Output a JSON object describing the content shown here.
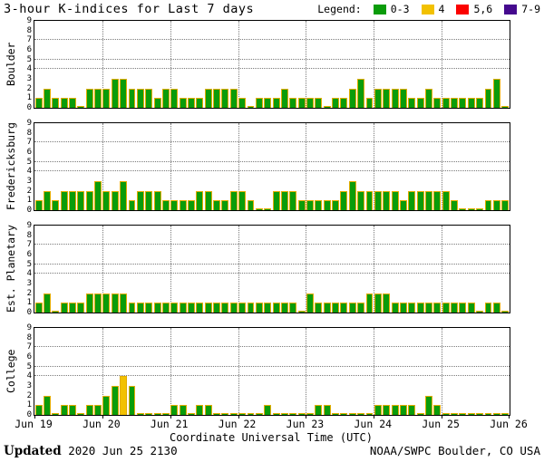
{
  "header": {
    "title": "3-hour K-indices for Last 7 days",
    "legend_label": "Legend:",
    "legend": [
      {
        "label": "0-3",
        "color": "#0a9c0a"
      },
      {
        "label": "4",
        "color": "#f2c101"
      },
      {
        "label": "5,6",
        "color": "#fb0200"
      },
      {
        "label": "7-9",
        "color": "#45098e"
      }
    ]
  },
  "chart_data": {
    "type": "bar",
    "title": "3-hour K-indices for Last 7 days",
    "xlabel": "Coordinate Universal Time (UTC)",
    "x_tick_labels": [
      "Jun 19",
      "Jun 20",
      "Jun 21",
      "Jun 22",
      "Jun 23",
      "Jun 24",
      "Jun 25",
      "Jun 26"
    ],
    "ylim": [
      0,
      9
    ],
    "y_tick_labels": [
      0,
      1,
      2,
      3,
      4,
      5,
      6,
      7,
      8,
      9
    ],
    "y_grid_values": [
      4,
      5,
      7
    ],
    "grid": "dotted",
    "bars_per_day": 8,
    "days": 7,
    "bar_colors": {
      "green_0_3": "#0a9c0a",
      "yellow_4": "#f2c101",
      "red_5_6": "#fb0200",
      "purple_7_9": "#45098e",
      "bar_edge": "#e2ac00"
    },
    "panels": [
      {
        "station": "Boulder",
        "values": [
          1,
          2,
          1,
          1,
          1,
          0,
          2,
          2,
          2,
          3,
          3,
          2,
          2,
          2,
          1,
          2,
          2,
          1,
          1,
          1,
          2,
          2,
          2,
          2,
          1,
          0,
          1,
          1,
          1,
          2,
          1,
          1,
          1,
          1,
          0,
          1,
          1,
          2,
          3,
          1,
          2,
          2,
          2,
          2,
          1,
          1,
          2,
          1,
          1,
          1,
          1,
          1,
          1,
          2,
          3,
          0
        ]
      },
      {
        "station": "Fredericksburg",
        "values": [
          1,
          2,
          1,
          2,
          2,
          2,
          2,
          3,
          2,
          2,
          3,
          1,
          2,
          2,
          2,
          1,
          1,
          1,
          1,
          2,
          2,
          1,
          1,
          2,
          2,
          1,
          0,
          0,
          2,
          2,
          2,
          1,
          1,
          1,
          1,
          1,
          2,
          3,
          2,
          2,
          2,
          2,
          2,
          1,
          2,
          2,
          2,
          2,
          2,
          1,
          0,
          0,
          0,
          1,
          1,
          1
        ]
      },
      {
        "station": "Est. Planetary",
        "values": [
          1,
          2,
          0,
          1,
          1,
          1,
          2,
          2,
          2,
          2,
          2,
          1,
          1,
          1,
          1,
          1,
          1,
          1,
          1,
          1,
          1,
          1,
          1,
          1,
          1,
          1,
          1,
          1,
          1,
          1,
          1,
          0,
          2,
          1,
          1,
          1,
          1,
          1,
          1,
          2,
          2,
          2,
          1,
          1,
          1,
          1,
          1,
          1,
          1,
          1,
          1,
          1,
          0,
          1,
          1,
          0
        ]
      },
      {
        "station": "College",
        "values": [
          1,
          2,
          0,
          1,
          1,
          0,
          1,
          1,
          2,
          3,
          4,
          3,
          0,
          0,
          0,
          0,
          1,
          1,
          0,
          1,
          1,
          0,
          0,
          0,
          0,
          0,
          0,
          1,
          0,
          0,
          0,
          0,
          0,
          1,
          1,
          0,
          0,
          0,
          0,
          0,
          1,
          1,
          1,
          1,
          1,
          0,
          2,
          1,
          0,
          0,
          0,
          0,
          0,
          0,
          0,
          0
        ]
      }
    ]
  },
  "footer": {
    "updated_label": "Updated",
    "updated_value": "2020 Jun 25 2130",
    "credit": "NOAA/SWPC Boulder, CO USA"
  }
}
